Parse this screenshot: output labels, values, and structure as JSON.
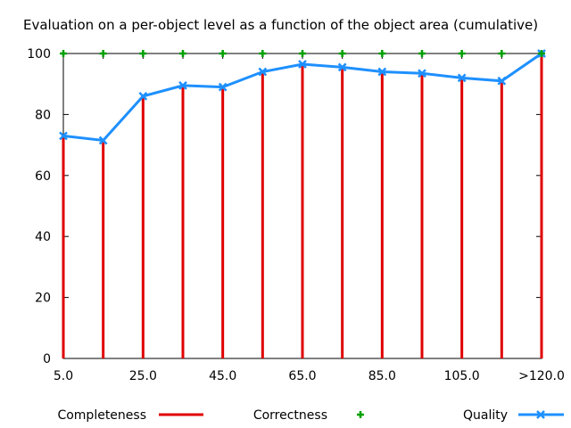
{
  "chart_data": {
    "type": "line",
    "title": "Evaluation on a per-object level as a function of the object area (cumulative)",
    "xlabel": "",
    "ylabel": "",
    "ylim": [
      0,
      100
    ],
    "y_ticks": [
      0,
      20,
      40,
      60,
      80,
      100
    ],
    "categories": [
      "5.0",
      "15.0",
      "25.0",
      "35.0",
      "45.0",
      "55.0",
      "65.0",
      "75.0",
      "85.0",
      "95.0",
      "105.0",
      "115.0",
      ">120.0"
    ],
    "x_tick_labels": [
      "5.0",
      "25.0",
      "45.0",
      "65.0",
      "85.0",
      "105.0",
      ">120.0"
    ],
    "grid": false,
    "legend_position": "bottom",
    "series": [
      {
        "name": "Completeness",
        "style": "impulses",
        "color": "#e00000",
        "values": [
          73,
          71.5,
          86,
          89.5,
          89,
          94,
          96.5,
          95.5,
          94,
          93.5,
          92,
          91,
          100
        ]
      },
      {
        "name": "Correctness",
        "style": "points",
        "color": "#00a000",
        "values": [
          100,
          100,
          100,
          100,
          100,
          100,
          100,
          100,
          100,
          100,
          100,
          100,
          100
        ]
      },
      {
        "name": "Quality",
        "style": "linespoints",
        "color": "#1e90ff",
        "values": [
          73,
          71.5,
          86,
          89.5,
          89,
          94,
          96.5,
          95.5,
          94,
          93.5,
          92,
          91,
          100
        ]
      }
    ]
  }
}
